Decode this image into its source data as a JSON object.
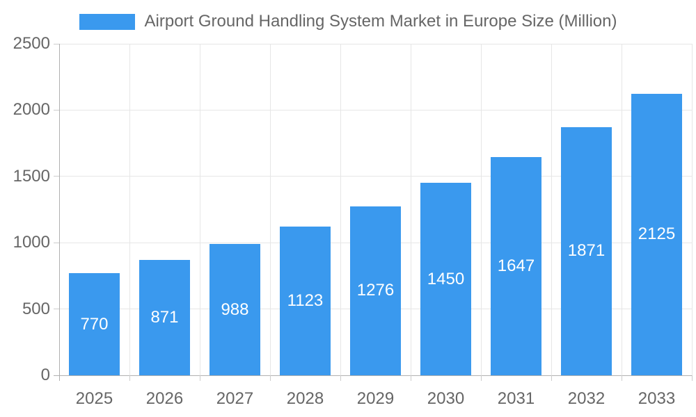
{
  "legend": {
    "label": "Airport Ground Handling System Market in Europe Size (Million)",
    "swatch_color": "#3A99EE"
  },
  "chart_data": {
    "type": "bar",
    "title": "Airport Ground Handling System Market in Europe Size (Million)",
    "categories": [
      "2025",
      "2026",
      "2027",
      "2028",
      "2029",
      "2030",
      "2031",
      "2032",
      "2033"
    ],
    "values": [
      770,
      871,
      988,
      1123,
      1276,
      1450,
      1647,
      1871,
      2125
    ],
    "xlabel": "",
    "ylabel": "",
    "ylim": [
      0,
      2500
    ],
    "yticks": [
      0,
      500,
      1000,
      1500,
      2000,
      2500
    ],
    "grid": true,
    "legend_position": "top",
    "bar_color": "#3A99EE",
    "value_label_color": "#ffffff",
    "axis_text_color": "#666666",
    "gridline_color": "#e6e6e6",
    "axis_line_color": "#b0b0b0",
    "tick_color": "#cccccc"
  }
}
